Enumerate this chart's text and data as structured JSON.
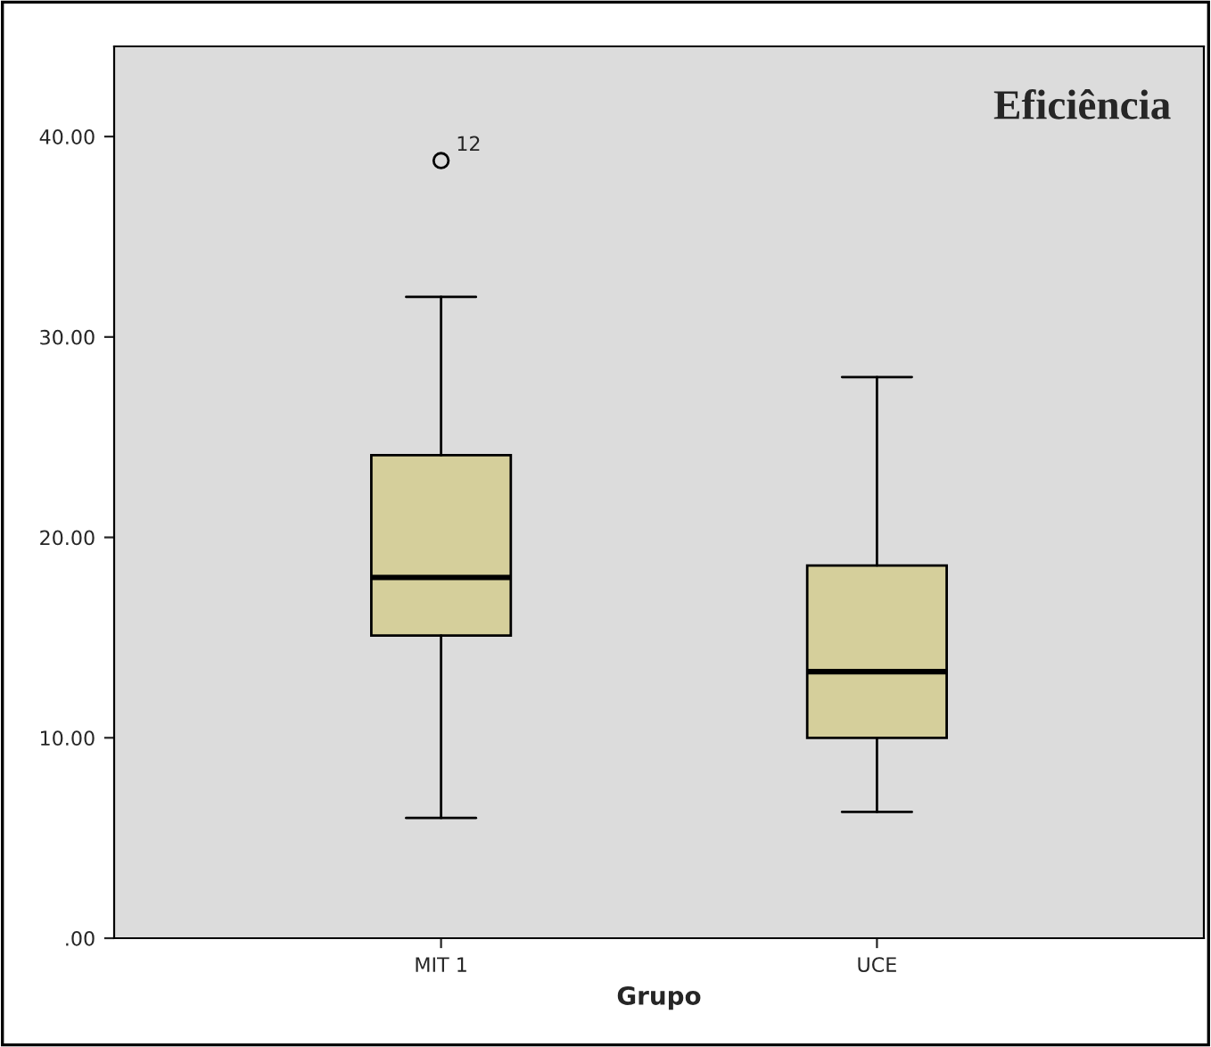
{
  "chart_data": {
    "type": "box",
    "title": "Eficiência",
    "xlabel": "Grupo",
    "categories": [
      "MIT 1",
      "UCE"
    ],
    "series": [
      {
        "color": "#d5cf9b",
        "boxes": [
          {
            "low": 6,
            "q1": 15.1,
            "median": 18,
            "q3": 24.1,
            "high": 32,
            "outliers": [
              38.8
            ]
          },
          {
            "low": 6.3,
            "q1": 10,
            "median": 13.3,
            "q3": 18.6,
            "high": 28
          }
        ]
      }
    ],
    "ylim": [
      0,
      44.5
    ],
    "yticks": [
      {
        "value": 0,
        "label": ".00"
      },
      {
        "value": 10,
        "label": "10.00"
      },
      {
        "value": 20,
        "label": "20.00"
      },
      {
        "value": 30,
        "label": "30.00"
      },
      {
        "value": 40,
        "label": "40.00"
      }
    ],
    "annotations": [
      "12"
    ],
    "grid": false
  }
}
